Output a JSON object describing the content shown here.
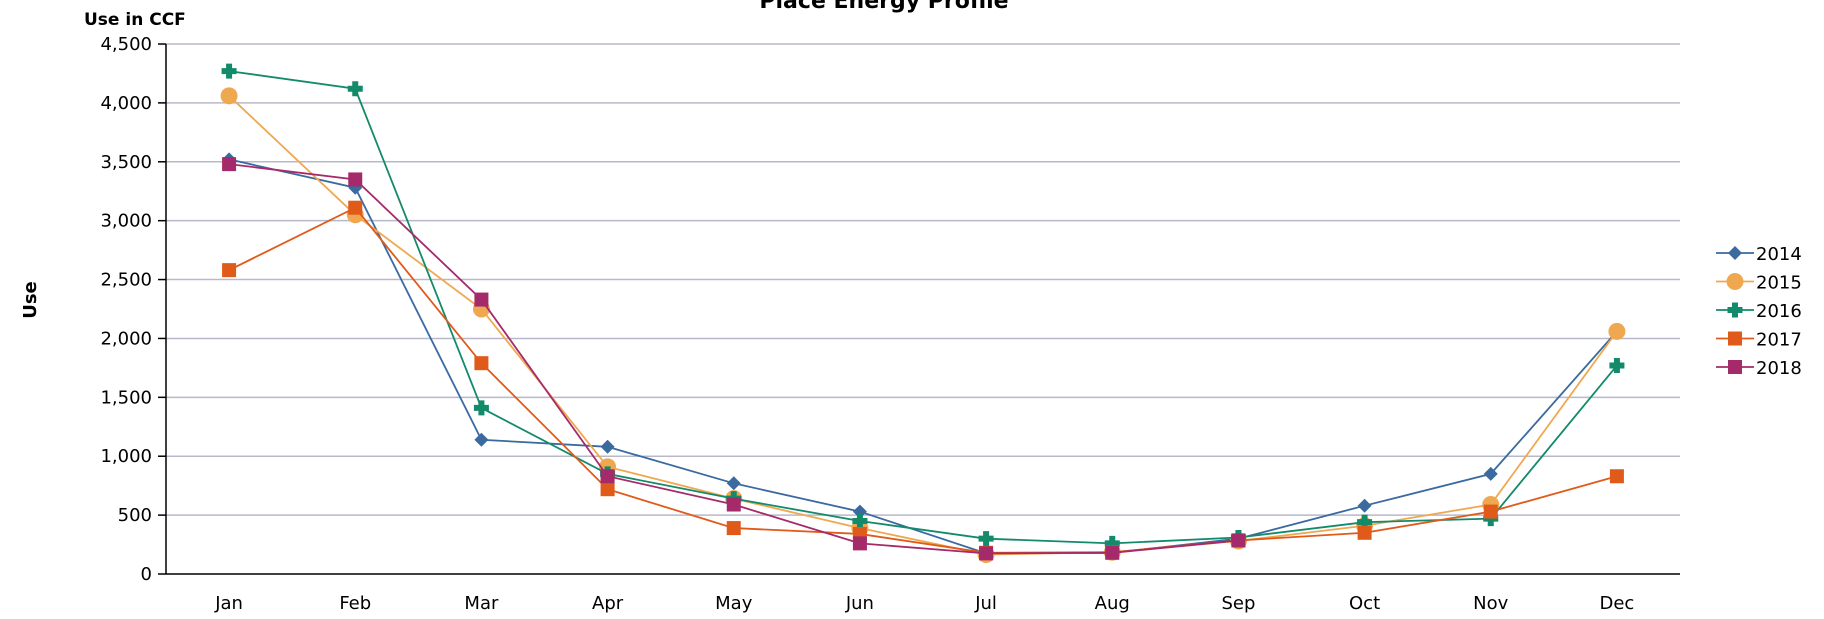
{
  "chart_data": {
    "type": "line",
    "title": "Place Energy Profile",
    "unit_label": "Use in CCF",
    "ylabel": "Use",
    "xlabel": "",
    "categories": [
      "Jan",
      "Feb",
      "Mar",
      "Apr",
      "May",
      "Jun",
      "Jul",
      "Aug",
      "Sep",
      "Oct",
      "Nov",
      "Dec"
    ],
    "ylim": [
      0,
      4500
    ],
    "yticks": [
      0,
      500,
      1000,
      1500,
      2000,
      2500,
      3000,
      3500,
      4000,
      4500
    ],
    "ytick_labels": [
      "0",
      "500",
      "1,000",
      "1,500",
      "2,000",
      "2,500",
      "3,000",
      "3,500",
      "4,000",
      "4,500"
    ],
    "grid": true,
    "legend_position": "right",
    "series": [
      {
        "name": "2014",
        "color": "#3a6aa0",
        "marker": "diamond",
        "values": [
          3520,
          3280,
          1140,
          1080,
          770,
          530,
          175,
          180,
          300,
          580,
          850,
          2060
        ]
      },
      {
        "name": "2015",
        "color": "#f0a850",
        "marker": "circle",
        "values": [
          4060,
          3050,
          2250,
          910,
          640,
          390,
          165,
          185,
          280,
          410,
          590,
          2060
        ]
      },
      {
        "name": "2016",
        "color": "#138a6a",
        "marker": "plus",
        "values": [
          4270,
          4120,
          1410,
          850,
          640,
          450,
          300,
          260,
          310,
          440,
          470,
          1770
        ]
      },
      {
        "name": "2017",
        "color": "#e05a1a",
        "marker": "square",
        "values": [
          2580,
          3110,
          1790,
          720,
          390,
          340,
          180,
          185,
          285,
          350,
          530,
          830
        ]
      },
      {
        "name": "2018",
        "color": "#a52a6a",
        "marker": "square",
        "values": [
          3480,
          3350,
          2330,
          830,
          590,
          260,
          175,
          180,
          285,
          null,
          null,
          null
        ]
      }
    ]
  }
}
